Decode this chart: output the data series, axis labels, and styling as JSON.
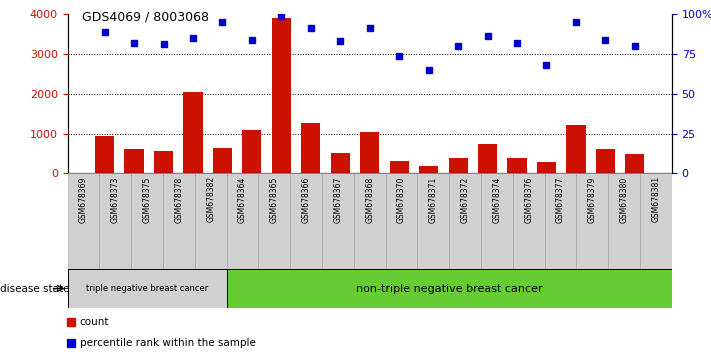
{
  "title": "GDS4069 / 8003068",
  "samples": [
    "GSM678369",
    "GSM678373",
    "GSM678375",
    "GSM678378",
    "GSM678382",
    "GSM678364",
    "GSM678365",
    "GSM678366",
    "GSM678367",
    "GSM678368",
    "GSM678370",
    "GSM678371",
    "GSM678372",
    "GSM678374",
    "GSM678376",
    "GSM678377",
    "GSM678379",
    "GSM678380",
    "GSM678381"
  ],
  "counts": [
    950,
    620,
    560,
    2050,
    630,
    1100,
    3900,
    1270,
    520,
    1040,
    310,
    180,
    400,
    750,
    400,
    290,
    1220,
    620,
    490
  ],
  "percentiles": [
    89,
    82,
    81,
    85,
    95,
    84,
    99,
    91,
    83,
    91,
    74,
    65,
    80,
    86,
    82,
    68,
    95,
    84,
    80
  ],
  "group1_count": 5,
  "group1_label": "triple negative breast cancer",
  "group2_label": "non-triple negative breast cancer",
  "group1_color": "#d0d0d0",
  "group2_color": "#66cc33",
  "bar_color": "#cc1100",
  "dot_color": "#0000cc",
  "ylim_left": [
    0,
    4000
  ],
  "ylim_right": [
    0,
    100
  ],
  "yticks_left": [
    0,
    1000,
    2000,
    3000,
    4000
  ],
  "yticks_right": [
    0,
    25,
    50,
    75,
    100
  ],
  "ytick_labels_right": [
    "0",
    "25",
    "50",
    "75",
    "100%"
  ],
  "disease_state_label": "disease state",
  "legend_count": "count",
  "legend_percentile": "percentile rank within the sample",
  "ylabel_left_color": "#cc1100",
  "ylabel_right_color": "#0000cc",
  "bg_color": "#ffffff"
}
